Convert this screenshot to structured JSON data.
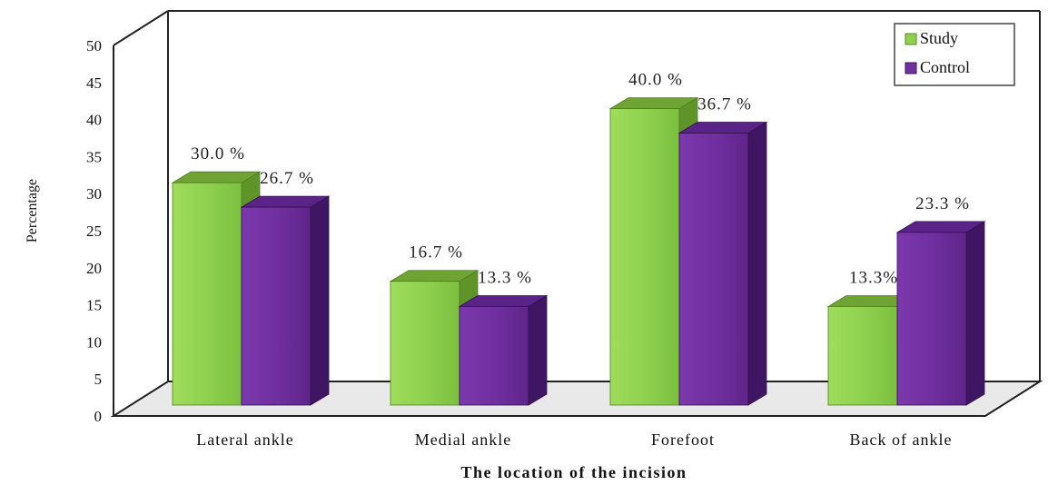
{
  "chart_data": {
    "type": "bar",
    "categories": [
      "Lateral ankle",
      "Medial ankle",
      "Forefoot",
      "Back of ankle"
    ],
    "series": [
      {
        "name": "Study",
        "values": [
          30.0,
          16.7,
          40.0,
          13.3
        ],
        "labels": [
          "30.0 %",
          "16.7 %",
          "40.0 %",
          "13.3%"
        ],
        "color": "#8fd14f"
      },
      {
        "name": "Control",
        "values": [
          26.7,
          13.3,
          36.7,
          23.3
        ],
        "labels": [
          "26.7 %",
          "13.3 %",
          "36.7 %",
          "23.3 %"
        ],
        "color": "#7030a0"
      }
    ],
    "yticks": [
      "0",
      "5",
      "10",
      "15",
      "20",
      "25",
      "30",
      "35",
      "40",
      "45",
      "50"
    ],
    "ylim": [
      0,
      50
    ],
    "xlabel": "The location of the incision",
    "ylabel": "Percentage",
    "legend_position": "top-right",
    "grid": false,
    "style": "3d-clustered-column"
  }
}
